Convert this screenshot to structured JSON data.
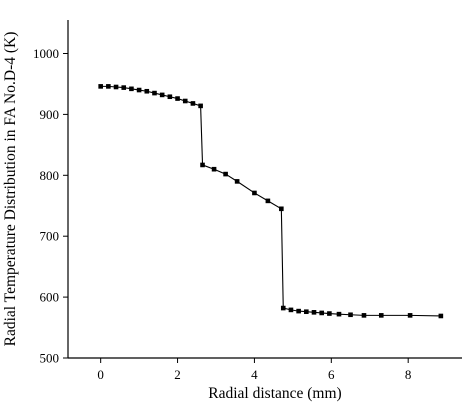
{
  "chart_data": {
    "type": "line",
    "title": "",
    "xlabel": "Radial distance (mm)",
    "ylabel": "Radial Temperature Distribution in FA No.D-4 (K)",
    "xlim": [
      -0.85,
      9.4
    ],
    "ylim": [
      500,
      1055
    ],
    "xticks": [
      0,
      2,
      4,
      6,
      8
    ],
    "yticks": [
      500,
      600,
      700,
      800,
      900,
      1000
    ],
    "grid": false,
    "legend": "none",
    "series": [
      {
        "color": "#000000",
        "marker": "square",
        "points": [
          {
            "x": 0.0,
            "y": 946
          },
          {
            "x": 0.2,
            "y": 946
          },
          {
            "x": 0.4,
            "y": 945
          },
          {
            "x": 0.6,
            "y": 944
          },
          {
            "x": 0.8,
            "y": 942
          },
          {
            "x": 1.0,
            "y": 940
          },
          {
            "x": 1.2,
            "y": 938
          },
          {
            "x": 1.4,
            "y": 935
          },
          {
            "x": 1.6,
            "y": 932
          },
          {
            "x": 1.8,
            "y": 929
          },
          {
            "x": 2.0,
            "y": 926
          },
          {
            "x": 2.2,
            "y": 922
          },
          {
            "x": 2.4,
            "y": 918
          },
          {
            "x": 2.6,
            "y": 914
          },
          {
            "x": 2.65,
            "y": 817
          },
          {
            "x": 2.95,
            "y": 810
          },
          {
            "x": 3.25,
            "y": 802
          },
          {
            "x": 3.55,
            "y": 790
          },
          {
            "x": 4.0,
            "y": 771
          },
          {
            "x": 4.35,
            "y": 758
          },
          {
            "x": 4.7,
            "y": 745
          },
          {
            "x": 4.75,
            "y": 582
          },
          {
            "x": 4.95,
            "y": 579
          },
          {
            "x": 5.15,
            "y": 577
          },
          {
            "x": 5.35,
            "y": 576
          },
          {
            "x": 5.55,
            "y": 575
          },
          {
            "x": 5.75,
            "y": 574
          },
          {
            "x": 5.95,
            "y": 573
          },
          {
            "x": 6.2,
            "y": 572
          },
          {
            "x": 6.5,
            "y": 571
          },
          {
            "x": 6.85,
            "y": 570
          },
          {
            "x": 7.3,
            "y": 570
          },
          {
            "x": 8.05,
            "y": 570
          },
          {
            "x": 8.85,
            "y": 569
          }
        ]
      }
    ]
  }
}
